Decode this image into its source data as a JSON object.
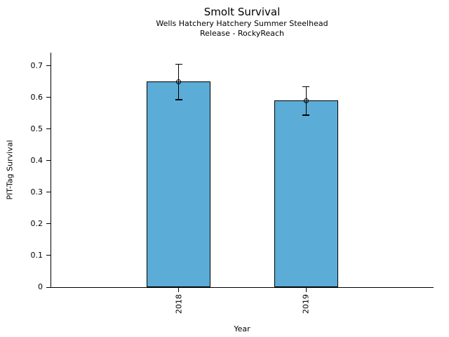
{
  "chart_data": {
    "type": "bar",
    "title": "Smolt Survival",
    "subtitle_lines": [
      "Wells Hatchery Hatchery Summer Steelhead",
      "Release - RockyReach"
    ],
    "xlabel": "Year",
    "ylabel": "PIT-Tag Survival",
    "categories": [
      "2018",
      "2019"
    ],
    "values": [
      0.65,
      0.59
    ],
    "error_bars": [
      {
        "low": 0.593,
        "high": 0.705
      },
      {
        "low": 0.544,
        "high": 0.634
      }
    ],
    "marker": "open-circle",
    "ytick_labels": [
      "0",
      "0.1",
      "0.2",
      "0.3",
      "0.4",
      "0.5",
      "0.6",
      "0.7"
    ],
    "yticks": [
      0,
      0.1,
      0.2,
      0.3,
      0.4,
      0.5,
      0.6,
      0.7
    ],
    "ylim": [
      0,
      0.742
    ],
    "xlim": [
      -1,
      2
    ],
    "x_positions": [
      0,
      1
    ],
    "bar_width_units": 0.5,
    "bar_color": "#5BACD6",
    "bar_edge_color": "#000000",
    "error_color": "#000000",
    "grid": false,
    "legend": null
  }
}
